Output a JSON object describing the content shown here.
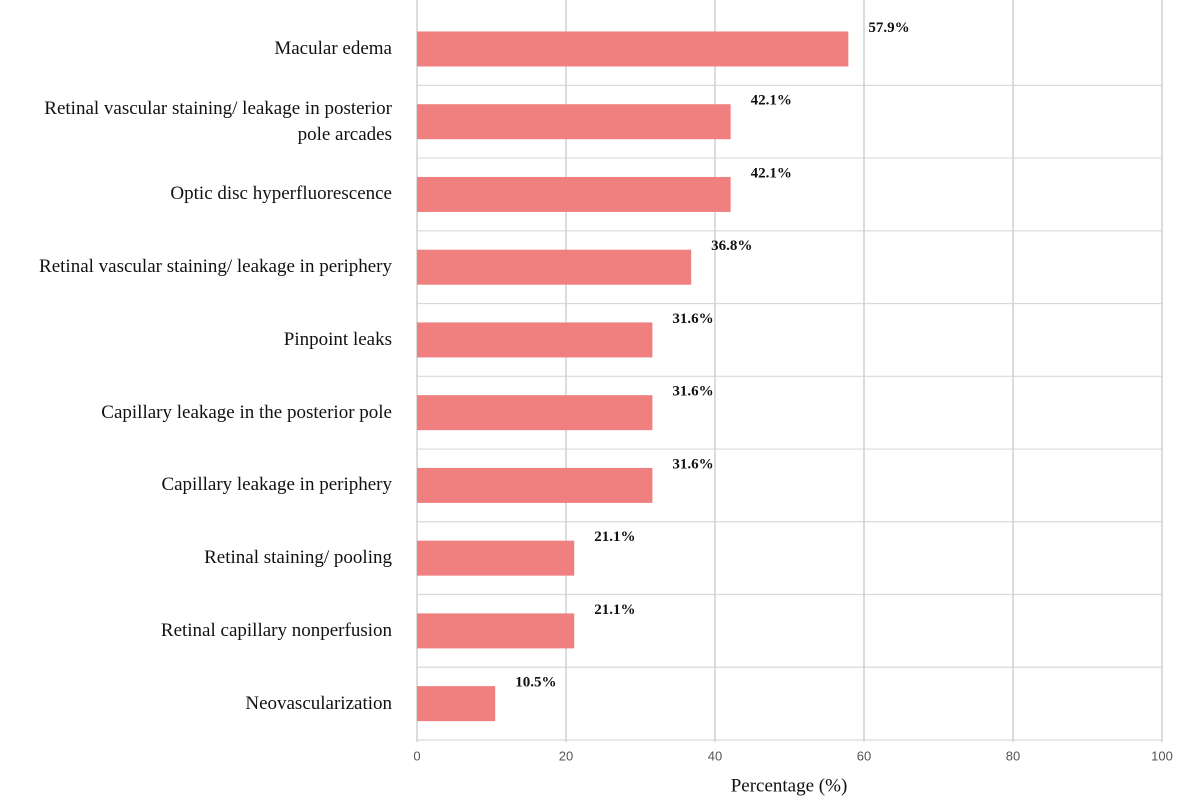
{
  "chart_data": {
    "type": "bar",
    "orientation": "horizontal",
    "categories": [
      "Macular edema",
      "Retinal vascular staining/ leakage in posterior\npole arcades",
      "Optic disc hyperfluorescence",
      "Retinal vascular staining/ leakage in periphery",
      "Pinpoint leaks",
      "Capillary leakage in the posterior pole",
      "Capillary leakage in periphery",
      "Retinal staining/ pooling",
      "Retinal capillary nonperfusion",
      "Neovascularization"
    ],
    "values": [
      57.9,
      42.1,
      42.1,
      36.8,
      31.6,
      31.6,
      31.6,
      21.1,
      21.1,
      10.5
    ],
    "value_labels": [
      "57.9%",
      "42.1%",
      "42.1%",
      "36.8%",
      "31.6%",
      "31.6%",
      "31.6%",
      "21.1%",
      "21.1%",
      "10.5%"
    ],
    "color": "#f08080",
    "xlim": [
      0,
      100
    ],
    "xticks": [
      0,
      20,
      40,
      60,
      80,
      100
    ],
    "xlabel": "Percentage (%)",
    "grid": true
  }
}
